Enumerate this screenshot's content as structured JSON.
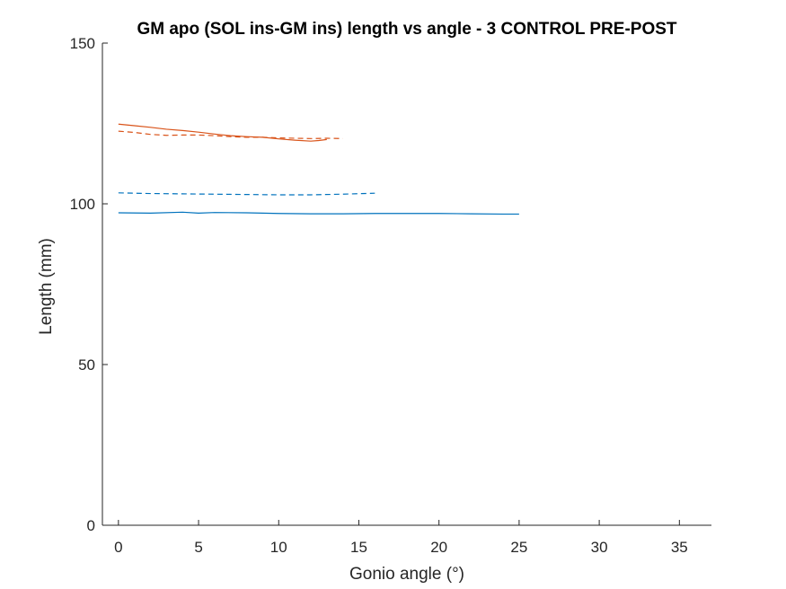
{
  "chart_data": {
    "type": "line",
    "title": "GM apo (SOL ins-GM ins) length vs angle - 3 CONTROL PRE-POST",
    "xlabel": "Gonio angle (°)",
    "ylabel": "Length (mm)",
    "xlim": [
      -1,
      37
    ],
    "ylim": [
      0,
      150
    ],
    "xticks": [
      0,
      5,
      10,
      15,
      20,
      25,
      30,
      35
    ],
    "yticks": [
      0,
      50,
      100,
      150
    ],
    "grid": false,
    "legend": "none",
    "series": [
      {
        "color": "#0072BD",
        "style": "solid",
        "x": [
          0,
          2,
          4,
          5,
          6,
          8,
          10,
          12,
          14,
          16,
          18,
          20,
          22,
          24,
          25
        ],
        "y": [
          97.2,
          97.1,
          97.4,
          97.1,
          97.3,
          97.2,
          97.0,
          96.9,
          96.9,
          97.0,
          97.0,
          97.0,
          96.9,
          96.8,
          96.8
        ]
      },
      {
        "color": "#0072BD",
        "style": "dashed",
        "x": [
          0,
          2,
          4,
          6,
          8,
          10,
          12,
          14,
          16
        ],
        "y": [
          103.4,
          103.2,
          103.1,
          103.0,
          102.9,
          102.8,
          102.8,
          103.0,
          103.3
        ]
      },
      {
        "color": "#D95319",
        "style": "solid",
        "x": [
          0,
          1,
          2,
          3,
          4,
          5,
          6,
          7,
          8,
          9,
          10,
          11,
          12,
          12.5,
          13
        ],
        "y": [
          124.8,
          124.3,
          123.8,
          123.2,
          122.8,
          122.3,
          121.7,
          121.2,
          120.9,
          120.7,
          120.2,
          119.8,
          119.5,
          119.7,
          120.0
        ]
      },
      {
        "color": "#D95319",
        "style": "dashed",
        "x": [
          0,
          1,
          2,
          3,
          4,
          5,
          6,
          7,
          8,
          9,
          10,
          11,
          12,
          13,
          14
        ],
        "y": [
          122.6,
          122.2,
          121.6,
          121.3,
          121.4,
          121.4,
          121.2,
          120.9,
          120.7,
          120.7,
          120.5,
          120.4,
          120.3,
          120.4,
          120.3
        ]
      }
    ]
  }
}
